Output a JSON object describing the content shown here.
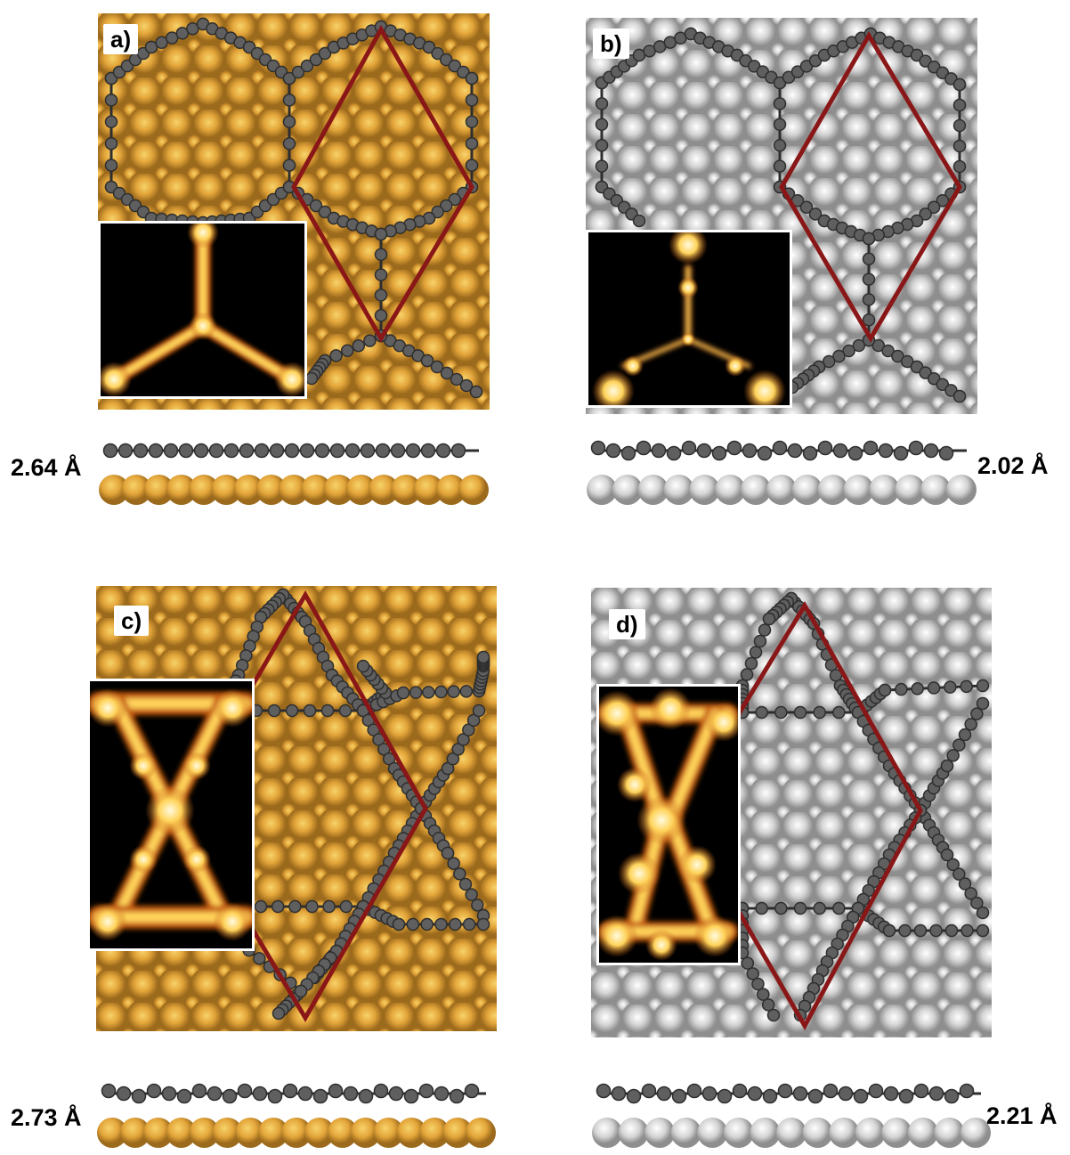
{
  "panels": [
    {
      "id": "a",
      "label": "a)",
      "substrate": "gold",
      "distance": "2.64 Å"
    },
    {
      "id": "b",
      "label": "b)",
      "substrate": "silver",
      "distance": "2.02 Å"
    },
    {
      "id": "c",
      "label": "c)",
      "substrate": "gold",
      "distance": "2.73 Å"
    },
    {
      "id": "d",
      "label": "d)",
      "substrate": "silver",
      "distance": "2.21 Å"
    }
  ],
  "colors": {
    "gold_light": "#f7d36a",
    "gold_mid": "#e3a53a",
    "gold_dark": "#9c6a1c",
    "silver_light": "#ffffff",
    "silver_mid": "#d4d4d4",
    "silver_dark": "#8e8e8e",
    "carbon": "#5f5f5f",
    "carbon_dark": "#2e2e2e",
    "unit_cell": "#8a1717",
    "stm_bright": "#ffd35a",
    "stm_mid": "#c45a10"
  }
}
